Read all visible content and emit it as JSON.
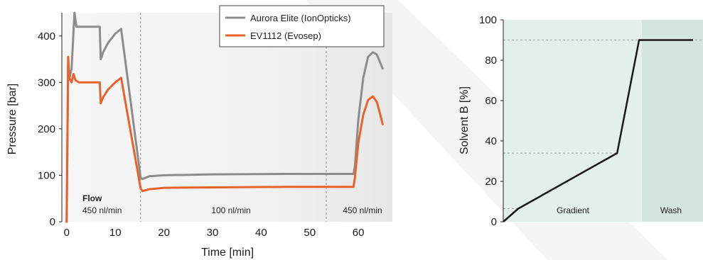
{
  "chart_data": [
    {
      "type": "line",
      "xlabel": "Time [min]",
      "ylabel": "Pressure [bar]",
      "xlim": [
        -1,
        67
      ],
      "ylim": [
        0,
        450
      ],
      "xticks": [
        0,
        10,
        20,
        30,
        40,
        50,
        60
      ],
      "yticks": [
        0,
        100,
        200,
        300,
        400
      ],
      "legend": {
        "position": "top-right",
        "entries": [
          {
            "name": "Aurora Elite (IonOpticks)",
            "color": "#8c8c8c"
          },
          {
            "name": "EV1112 (Evosep)",
            "color": "#e8632b"
          }
        ]
      },
      "series": [
        {
          "name": "Aurora Elite (IonOpticks)",
          "color": "#8c8c8c",
          "x": [
            0,
            0.3,
            0.6,
            1.0,
            1.6,
            2.0,
            3,
            5,
            6.8,
            7.0,
            7.5,
            8.5,
            10,
            11.2,
            15.2,
            15.6,
            17,
            20,
            30,
            45,
            59,
            59.3,
            60,
            61,
            62,
            63,
            63.8,
            64.4,
            65
          ],
          "values": [
            0,
            340,
            310,
            330,
            450,
            420,
            420,
            420,
            420,
            350,
            365,
            385,
            405,
            415,
            95,
            92,
            98,
            100,
            102,
            103,
            103,
            120,
            220,
            310,
            355,
            365,
            360,
            345,
            330
          ]
        },
        {
          "name": "EV1112 (Evosep)",
          "color": "#e8632b",
          "x": [
            0,
            0.3,
            0.5,
            1.0,
            1.4,
            1.8,
            2.5,
            4,
            6.8,
            7.0,
            7.5,
            8.5,
            10,
            11.2,
            15.2,
            15.6,
            17,
            20,
            30,
            45,
            59,
            59.3,
            60,
            61,
            62,
            63,
            63.8,
            64.4,
            65
          ],
          "values": [
            0,
            355,
            310,
            300,
            318,
            305,
            300,
            300,
            300,
            255,
            268,
            285,
            300,
            310,
            72,
            66,
            70,
            73,
            74,
            75,
            75,
            95,
            170,
            230,
            262,
            270,
            258,
            235,
            210
          ]
        }
      ],
      "reference_lines_x": [
        15.2,
        53.4
      ],
      "annotations": {
        "flow_title": "Flow",
        "flow_1": "450 nl/min",
        "flow_2": "100 nl/min",
        "flow_3": "450 nl/min"
      }
    },
    {
      "type": "line",
      "ylabel": "Solvent B [%]",
      "ylim": [
        0,
        100
      ],
      "yticks": [
        0,
        20,
        40,
        60,
        80,
        100
      ],
      "x": [
        0,
        0.075,
        0.57,
        0.68,
        0.95
      ],
      "values": [
        0,
        6.5,
        34,
        90,
        90
      ],
      "color": "#1a1a1a",
      "guide_levels": [
        6.5,
        34,
        90
      ],
      "regions": [
        {
          "label": "Gradient",
          "from": 0,
          "to": 0.68,
          "color": "#e4efea"
        },
        {
          "label": "Wash",
          "from": 0.68,
          "to": 1.0,
          "color": "#d3e5dd"
        }
      ]
    }
  ]
}
